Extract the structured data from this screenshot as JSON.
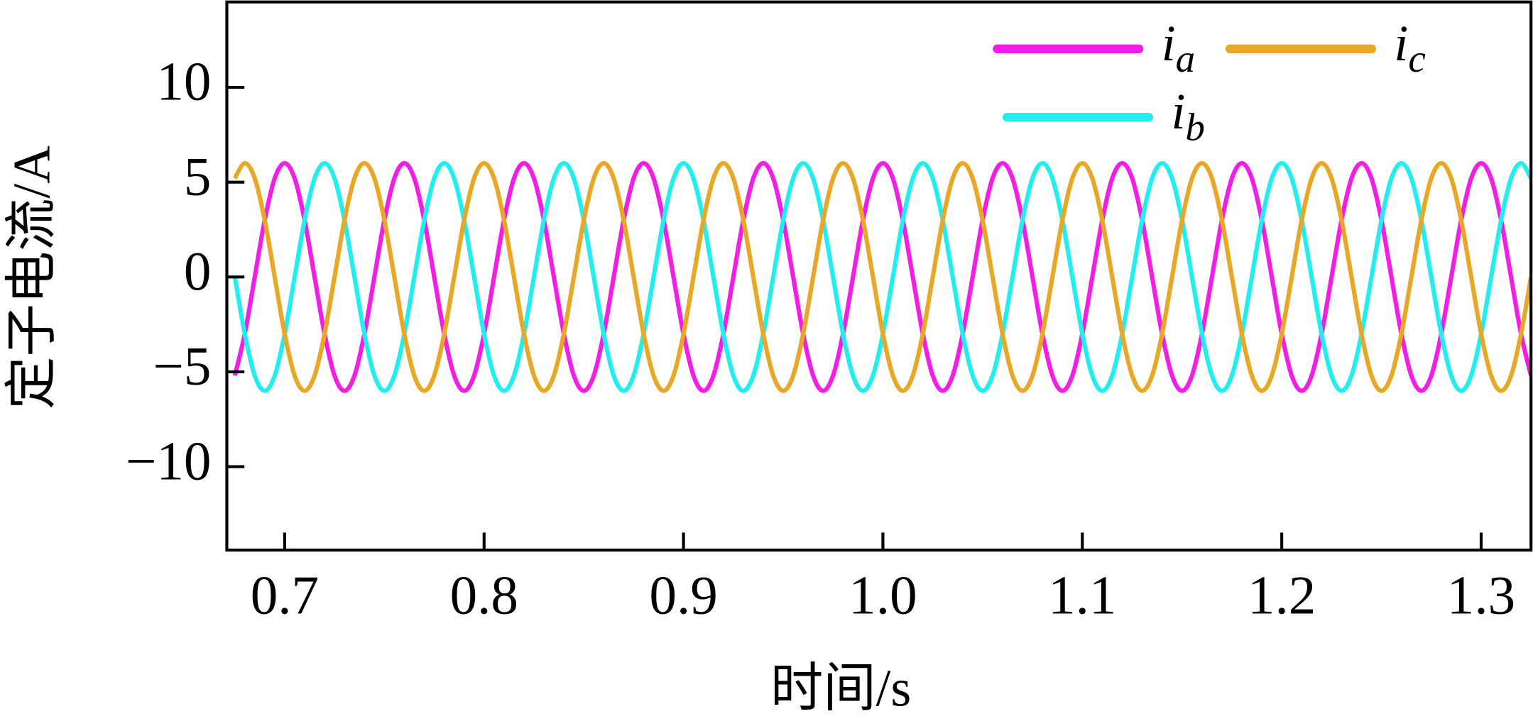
{
  "chart_data": {
    "type": "line",
    "x_label": "时间/s",
    "y_label": "定子电流/A",
    "xlim": [
      0.671,
      1.325
    ],
    "ylim": [
      -14.4,
      14.5
    ],
    "xticks": [
      0.7,
      0.8,
      0.9,
      {
        "value": 1,
        "label": "1.0"
      },
      1.1,
      1.2,
      1.3
    ],
    "yticks": [
      {
        "value": -10,
        "label": "−10"
      },
      {
        "value": -5,
        "label": "−5"
      },
      0,
      5,
      10
    ],
    "grid": false,
    "x": [
      0.675,
      0.68,
      0.685,
      0.69,
      0.695,
      0.7,
      0.705,
      0.71,
      0.715,
      0.72,
      0.725,
      0.73,
      0.735,
      0.74,
      0.745,
      0.75,
      0.755,
      0.76,
      0.765,
      0.77,
      0.775,
      0.78,
      0.785,
      0.79,
      0.795,
      0.8,
      0.805,
      0.81,
      0.815,
      0.82,
      0.825,
      0.83,
      0.835,
      0.84,
      0.845,
      0.85,
      0.855,
      0.86,
      0.865,
      0.87,
      0.875,
      0.88,
      0.885,
      0.89,
      0.895,
      0.9,
      0.905,
      0.91,
      0.915,
      0.92,
      0.925,
      0.93,
      0.935,
      0.94,
      0.945,
      0.95,
      0.955,
      0.96,
      0.965,
      0.97,
      0.975,
      0.98,
      0.985,
      0.99,
      0.995,
      1.0,
      1.005,
      1.01,
      1.015,
      1.02,
      1.025,
      1.03,
      1.035,
      1.04,
      1.045,
      1.05,
      1.055,
      1.06,
      1.065,
      1.07,
      1.075,
      1.08,
      1.085,
      1.09,
      1.095,
      1.1,
      1.105,
      1.11,
      1.115,
      1.12,
      1.125,
      1.13,
      1.135,
      1.14,
      1.145,
      1.15,
      1.155,
      1.16,
      1.165,
      1.17,
      1.175,
      1.18,
      1.185,
      1.19,
      1.195,
      1.2,
      1.205,
      1.21,
      1.215,
      1.22,
      1.225,
      1.23,
      1.235,
      1.24,
      1.245,
      1.25,
      1.255,
      1.26,
      1.265,
      1.27,
      1.275,
      1.28,
      1.285,
      1.29,
      1.295,
      1.3,
      1.305,
      1.31,
      1.315,
      1.32,
      1.325
    ],
    "series": [
      {
        "name": "ia",
        "color": "#f21ee6",
        "values": [
          -5.2,
          -3,
          0,
          3,
          5.2,
          6,
          5.2,
          3,
          0,
          -3,
          -5.2,
          -6,
          -5.2,
          -3,
          0,
          3,
          5.2,
          6,
          5.2,
          3,
          0,
          -3,
          -5.2,
          -6,
          -5.2,
          -3,
          0,
          3,
          5.2,
          6,
          5.2,
          3,
          0,
          -3,
          -5.2,
          -6,
          -5.2,
          -3,
          0,
          3,
          5.2,
          6,
          5.2,
          3,
          0,
          -3,
          -5.2,
          -6,
          -5.2,
          -3,
          0,
          3,
          5.2,
          6,
          5.2,
          3,
          0,
          -3,
          -5.2,
          -6,
          -5.2,
          -3,
          0,
          3,
          5.2,
          6,
          5.2,
          3,
          0,
          -3,
          -5.2,
          -6,
          -5.2,
          -3,
          0,
          3,
          5.2,
          6,
          5.2,
          3,
          0,
          -3,
          -5.2,
          -6,
          -5.2,
          -3,
          0,
          3,
          5.2,
          6,
          5.2,
          3,
          0,
          -3,
          -5.2,
          -6,
          -5.2,
          -3,
          0,
          3,
          5.2,
          6,
          5.2,
          3,
          0,
          -3,
          -5.2,
          -6,
          -5.2,
          -3,
          0,
          3,
          5.2,
          6,
          5.2,
          3,
          0,
          -3,
          -5.2,
          -6,
          -5.2,
          -3,
          0,
          3,
          5.2,
          6,
          5.2,
          3,
          0,
          -3,
          -5.2
        ]
      },
      {
        "name": "ib",
        "color": "#22eef0",
        "values": [
          0,
          -3,
          -5.2,
          -6,
          -5.2,
          -3,
          0,
          3,
          5.2,
          6,
          5.2,
          3,
          0,
          -3,
          -5.2,
          -6,
          -5.2,
          -3,
          0,
          3,
          5.2,
          6,
          5.2,
          3,
          0,
          -3,
          -5.2,
          -6,
          -5.2,
          -3,
          0,
          3,
          5.2,
          6,
          5.2,
          3,
          0,
          -3,
          -5.2,
          -6,
          -5.2,
          -3,
          0,
          3,
          5.2,
          6,
          5.2,
          3,
          0,
          -3,
          -5.2,
          -6,
          -5.2,
          -3,
          0,
          3,
          5.2,
          6,
          5.2,
          3,
          0,
          -3,
          -5.2,
          -6,
          -5.2,
          -3,
          0,
          3,
          5.2,
          6,
          5.2,
          3,
          0,
          -3,
          -5.2,
          -6,
          -5.2,
          -3,
          0,
          3,
          5.2,
          6,
          5.2,
          3,
          0,
          -3,
          -5.2,
          -6,
          -5.2,
          -3,
          0,
          3,
          5.2,
          6,
          5.2,
          3,
          0,
          -3,
          -5.2,
          -6,
          -5.2,
          -3,
          0,
          3,
          5.2,
          6,
          5.2,
          3,
          0,
          -3,
          -5.2,
          -6,
          -5.2,
          -3,
          0,
          3,
          5.2,
          6,
          5.2,
          3,
          0,
          -3,
          -5.2,
          -6,
          -5.2,
          -3,
          0,
          3,
          5.2,
          6,
          5.2
        ]
      },
      {
        "name": "ic",
        "color": "#e8a825",
        "values": [
          5.2,
          6,
          5.2,
          3,
          0,
          -3,
          -5.2,
          -6,
          -5.2,
          -3,
          0,
          3,
          5.2,
          6,
          5.2,
          3,
          0,
          -3,
          -5.2,
          -6,
          -5.2,
          -3,
          0,
          3,
          5.2,
          6,
          5.2,
          3,
          0,
          -3,
          -5.2,
          -6,
          -5.2,
          -3,
          0,
          3,
          5.2,
          6,
          5.2,
          3,
          0,
          -3,
          -5.2,
          -6,
          -5.2,
          -3,
          0,
          3,
          5.2,
          6,
          5.2,
          3,
          0,
          -3,
          -5.2,
          -6,
          -5.2,
          -3,
          0,
          3,
          5.2,
          6,
          5.2,
          3,
          0,
          -3,
          -5.2,
          -6,
          -5.2,
          -3,
          0,
          3,
          5.2,
          6,
          5.2,
          3,
          0,
          -3,
          -5.2,
          -6,
          -5.2,
          -3,
          0,
          3,
          5.2,
          6,
          5.2,
          3,
          0,
          -3,
          -5.2,
          -6,
          -5.2,
          -3,
          0,
          3,
          5.2,
          6,
          5.2,
          3,
          0,
          -3,
          -5.2,
          -6,
          -5.2,
          -3,
          0,
          3,
          5.2,
          6,
          5.2,
          3,
          0,
          -3,
          -5.2,
          -6,
          -5.2,
          -3,
          0,
          3,
          5.2,
          6,
          5.2,
          3,
          0,
          -3,
          -5.2,
          -6,
          -5.2,
          -3,
          0
        ]
      }
    ]
  }
}
